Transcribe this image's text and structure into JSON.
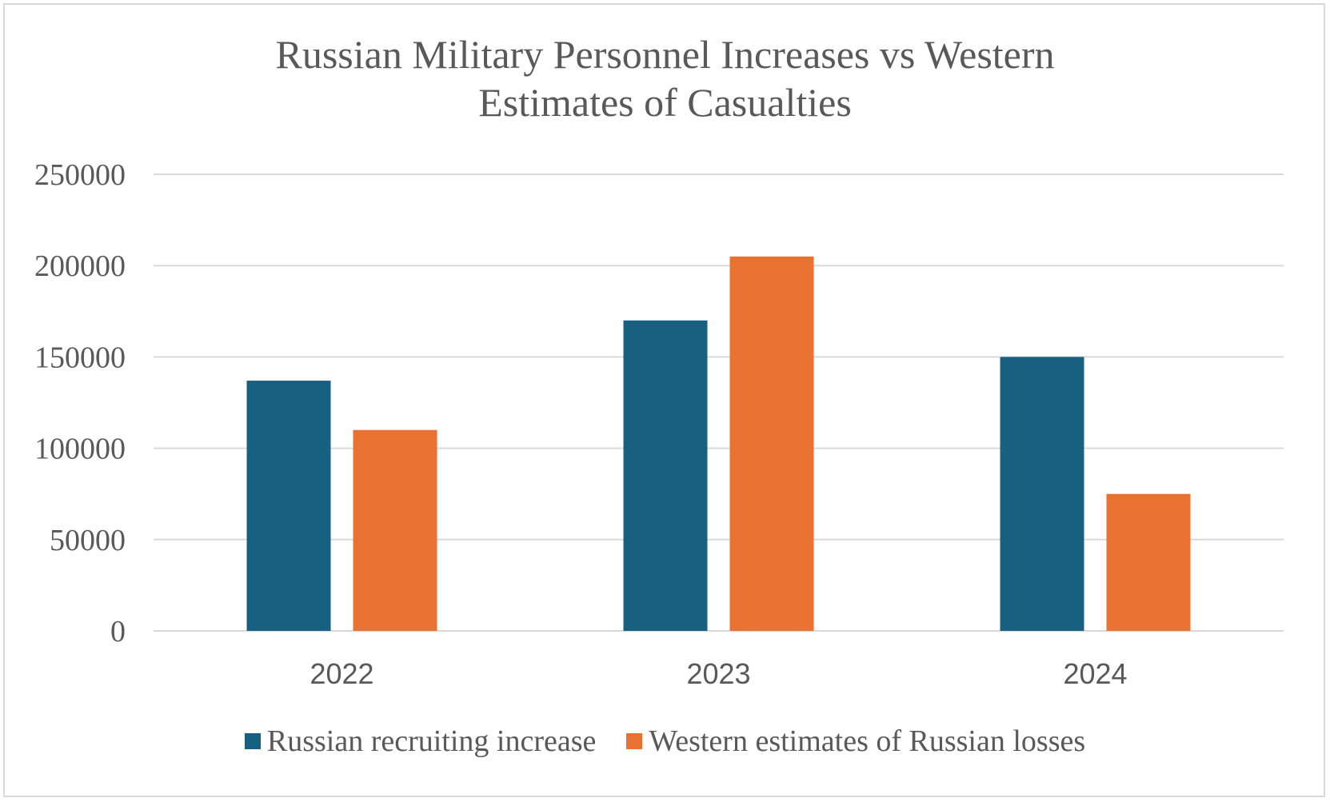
{
  "chart_data": {
    "type": "bar",
    "title": "Russian Military  Personnel Increases vs Western\nEstimates of Casualties",
    "categories": [
      "2022",
      "2023",
      "2024"
    ],
    "series": [
      {
        "name": "Russian recruiting increase",
        "values": [
          137000,
          170000,
          150000
        ],
        "color": "#17607f"
      },
      {
        "name": "Western estimates of Russian losses",
        "values": [
          110000,
          205000,
          75000
        ],
        "color": "#e97132"
      }
    ],
    "ylim": [
      0,
      250000
    ],
    "yticks": [
      "0",
      "50000",
      "100000",
      "150000",
      "200000",
      "250000"
    ],
    "xlabel": "",
    "ylabel": "",
    "grid": true,
    "legend": "bottom"
  }
}
